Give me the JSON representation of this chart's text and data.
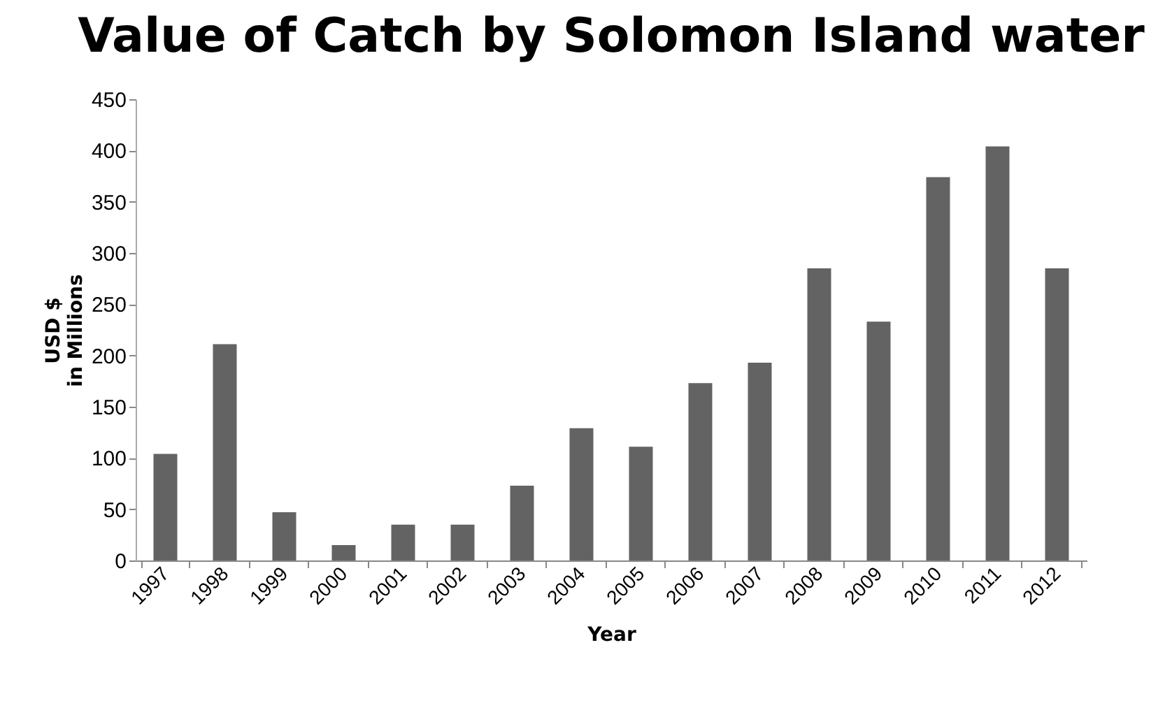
{
  "chart_data": {
    "type": "bar",
    "title": "Value of Catch by Solomon Island water",
    "xlabel": "Year",
    "ylabel": "USD $\nin Millions",
    "categories": [
      "1997",
      "1998",
      "1999",
      "2000",
      "2001",
      "2002",
      "2003",
      "2004",
      "2005",
      "2006",
      "2007",
      "2008",
      "2009",
      "2010",
      "2011",
      "2012"
    ],
    "values": [
      104,
      211,
      47,
      15,
      35,
      35,
      73,
      129,
      111,
      173,
      193,
      285,
      233,
      374,
      404,
      285
    ],
    "color": "#636363",
    "ylim": [
      0,
      450
    ],
    "yticks": [
      0,
      50,
      100,
      150,
      200,
      250,
      300,
      350,
      400,
      450
    ],
    "grid": false
  }
}
